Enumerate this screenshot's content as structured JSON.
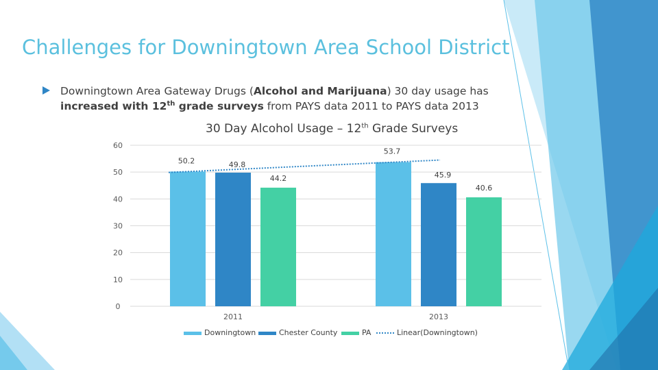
{
  "slide": {
    "title": "Challenges for Downingtown Area School District",
    "bullet": {
      "part1": "Downingtown Area Gateway Drugs (",
      "bold1": "Alcohol and Marijuana",
      "part2": ") 30 day usage has ",
      "bold2a": "increased with 12",
      "bold2sup": "th",
      "bold2b": " grade surveys",
      "part3": " from PAYS data 2011 to PAYS data 2013"
    },
    "colors": {
      "title": "#5bc0de",
      "accent_light": "#5bc0e8",
      "accent_dark": "#2f86c6",
      "accent_green": "#44d0a4"
    }
  },
  "chart_data": {
    "type": "bar",
    "title_main": "30 Day Alcohol Usage – 12",
    "title_sup": "th",
    "title_end": " Grade Surveys",
    "categories": [
      "2011",
      "2013"
    ],
    "series": [
      {
        "name": "Downingtown",
        "values": [
          50.2,
          53.7
        ],
        "color": "#5bc0e8"
      },
      {
        "name": "Chester County",
        "values": [
          49.8,
          45.9
        ],
        "color": "#2f86c6"
      },
      {
        "name": "PA",
        "values": [
          44.2,
          40.6
        ],
        "color": "#44d0a4"
      }
    ],
    "trendline": {
      "name": "Linear(Downingtown)",
      "series": "Downingtown",
      "style": "dotted",
      "color": "#2f86c6"
    },
    "ylim": [
      0,
      60
    ],
    "yticks": [
      0,
      10,
      20,
      30,
      40,
      50,
      60
    ],
    "grid": true,
    "legend": "bottom",
    "data_labels": true
  }
}
